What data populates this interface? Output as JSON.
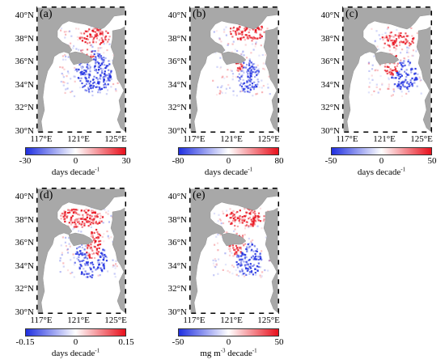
{
  "figure": {
    "colors": {
      "land": "#a8a8a8",
      "sea": "#ffffff",
      "negative": "#1f2fe0",
      "positive": "#e8101c",
      "frame": "#000000"
    },
    "y_ticks": [
      "40°N",
      "38°N",
      "36°N",
      "34°N",
      "32°N",
      "30°N"
    ],
    "x_ticks": [
      "117°E",
      "121°E",
      "125°E"
    ],
    "panels": [
      {
        "label": "(a)",
        "colorbar": {
          "min": "-30",
          "mid": "0",
          "max": "30",
          "unit": "days decade",
          "unit_sup": "-1"
        }
      },
      {
        "label": "(b)",
        "colorbar": {
          "min": "-80",
          "mid": "0",
          "max": "80",
          "unit": "days decade",
          "unit_sup": "-1"
        }
      },
      {
        "label": "(c)",
        "colorbar": {
          "min": "-50",
          "mid": "0",
          "max": "50",
          "unit": "days decade",
          "unit_sup": "-1"
        }
      },
      {
        "label": "(d)",
        "colorbar": {
          "min": "-0.15",
          "mid": "0",
          "max": "0.15",
          "unit": "days decade",
          "unit_sup": "-1"
        }
      },
      {
        "label": "(e)",
        "colorbar": {
          "min": "-50",
          "mid": "0",
          "max": "50",
          "unit_pre": "mg m",
          "unit_sup1": "-3",
          "unit_mid": " decade",
          "unit_sup": "-1"
        }
      }
    ]
  }
}
